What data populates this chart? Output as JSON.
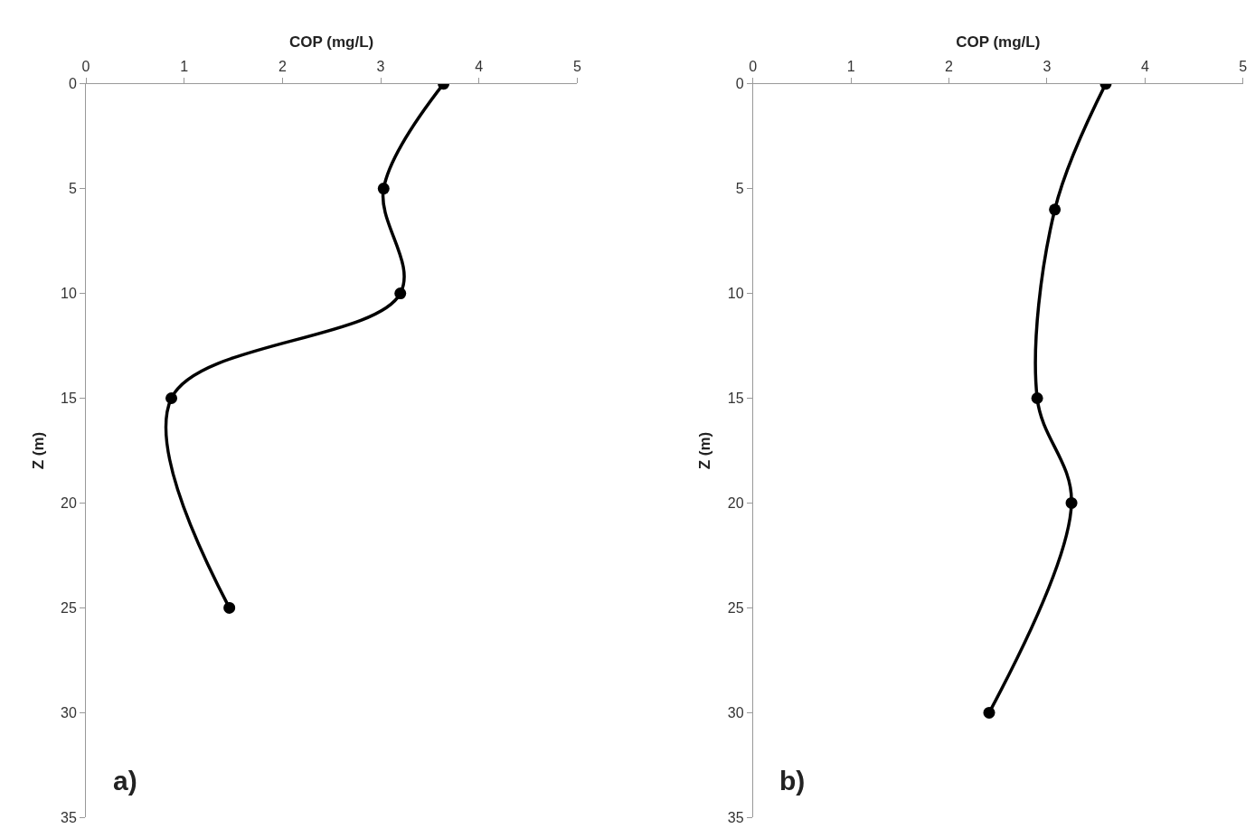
{
  "chart_data": [
    {
      "type": "line",
      "xlabel": "COP (mg/L)",
      "ylabel": "Z (m)",
      "annotations": [
        "a)"
      ],
      "xlim": [
        0,
        5
      ],
      "xticks": [
        0,
        1,
        2,
        3,
        4,
        5
      ],
      "ylim": [
        35,
        0
      ],
      "yticks": [
        0,
        5,
        10,
        15,
        20,
        25,
        30,
        35
      ],
      "marker": "circle",
      "line_style": "solid",
      "series": [
        {
          "color": "#000000",
          "x": [
            3.64,
            3.03,
            3.2,
            0.87,
            1.46
          ],
          "values": [
            0,
            5,
            10,
            15,
            25
          ]
        }
      ]
    },
    {
      "type": "line",
      "xlabel": "COP (mg/L)",
      "ylabel": "Z (m)",
      "annotations": [
        "b)"
      ],
      "xlim": [
        0,
        5
      ],
      "xticks": [
        0,
        1,
        2,
        3,
        4,
        5
      ],
      "ylim": [
        35,
        0
      ],
      "yticks": [
        0,
        5,
        10,
        15,
        20,
        25,
        30,
        35
      ],
      "marker": "circle",
      "line_style": "solid",
      "series": [
        {
          "color": "#000000",
          "x": [
            3.6,
            3.08,
            2.9,
            3.25,
            2.41
          ],
          "values": [
            0,
            6,
            15,
            20,
            30
          ]
        }
      ]
    }
  ]
}
